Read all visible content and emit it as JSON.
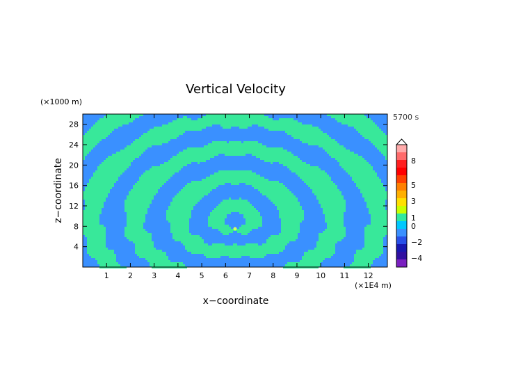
{
  "chart_data": {
    "type": "heatmap",
    "title": "Vertical Velocity",
    "xlabel": "x−coordinate",
    "ylabel": "z−coordinate",
    "x_unit": "(×1E4 m)",
    "y_unit": "(×1000 m)",
    "time_label": "5700 s",
    "xlim": [
      0,
      12.8
    ],
    "ylim": [
      0,
      30
    ],
    "x_ticks": [
      1,
      2,
      3,
      4,
      5,
      6,
      7,
      8,
      9,
      10,
      11,
      12
    ],
    "y_ticks": [
      4,
      8,
      12,
      16,
      20,
      24,
      28
    ],
    "grid": false,
    "field": {
      "description_pattern": "alternating positive/negative wave bands radiating from a source near x=6.4, z=7.5",
      "dominant_levels": [
        0,
        -2
      ]
    },
    "colorbar": {
      "levels": [
        {
          "value": "8",
          "label": "8"
        },
        {
          "value": "5",
          "label": "5"
        },
        {
          "value": "3",
          "label": "3"
        },
        {
          "value": "1",
          "label": "1"
        },
        {
          "value": "0",
          "label": "0"
        },
        {
          "value": "-2",
          "label": "−2"
        },
        {
          "value": "-4",
          "label": "−4"
        }
      ],
      "colors": [
        "#ffaaaa",
        "#ff6b6b",
        "#ff2020",
        "#ff0000",
        "#ff4000",
        "#ff8000",
        "#ffb000",
        "#ffe000",
        "#c8ff00",
        "#30e8a0",
        "#00c8ff",
        "#3a90ff",
        "#2850e8",
        "#1818b0",
        "#3010a0",
        "#7a20c0"
      ]
    },
    "colors": {
      "positive": "#38e89a",
      "negative": "#3a90ff",
      "source": "#d8ff60"
    }
  }
}
